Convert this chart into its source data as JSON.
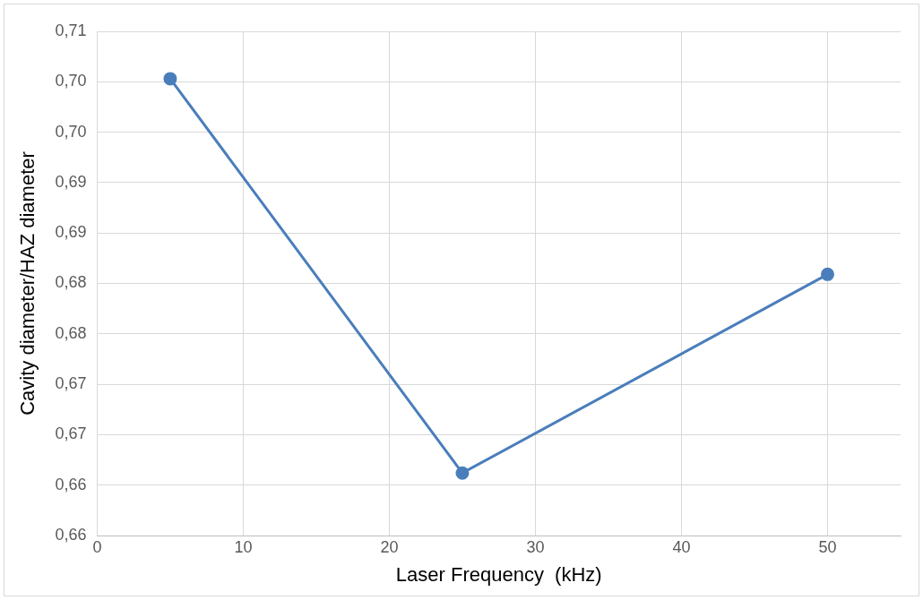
{
  "chart_data": {
    "type": "line",
    "xlabel": "Laser Frequency  (kHz)",
    "ylabel": "Cavity diameter/HAZ diameter",
    "x": [
      5,
      25,
      50
    ],
    "series": [
      {
        "color": "#4a7ebb",
        "values": [
          0.7003,
          0.6612,
          0.6809
        ]
      }
    ],
    "xlim": [
      0,
      55
    ],
    "xticks": [
      0,
      10,
      20,
      30,
      40,
      50
    ],
    "ylim": [
      0.655,
      0.705
    ],
    "yticks": [
      {
        "value": 0.655,
        "label": "0,66"
      },
      {
        "value": 0.66,
        "label": "0,66"
      },
      {
        "value": 0.665,
        "label": "0,67"
      },
      {
        "value": 0.67,
        "label": "0,67"
      },
      {
        "value": 0.675,
        "label": "0,68"
      },
      {
        "value": 0.68,
        "label": "0,68"
      },
      {
        "value": 0.685,
        "label": "0,69"
      },
      {
        "value": 0.69,
        "label": "0,69"
      },
      {
        "value": 0.695,
        "label": "0,70"
      },
      {
        "value": 0.7,
        "label": "0,70"
      },
      {
        "value": 0.705,
        "label": "0,71"
      }
    ],
    "grid": true,
    "marker": "circle",
    "line_style": "solid"
  }
}
